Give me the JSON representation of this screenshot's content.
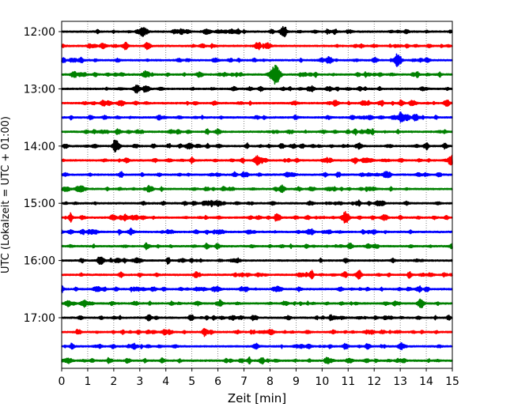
{
  "chart_data": {
    "type": "line",
    "title": "",
    "xlabel": "Zeit  [min]",
    "ylabel": "UTC (Lokalzeit = UTC + 01:00)",
    "xlim": [
      0,
      15
    ],
    "x_ticks": [
      "0",
      "1",
      "2",
      "3",
      "4",
      "5",
      "6",
      "7",
      "8",
      "9",
      "10",
      "11",
      "12",
      "13",
      "14",
      "15"
    ],
    "y_tick_labels": [
      "12:00",
      "13:00",
      "14:00",
      "15:00",
      "16:00",
      "17:00"
    ],
    "grid": "vertical dotted lines at each minute",
    "colors": [
      "#000000",
      "#ff0000",
      "#0000ff",
      "#008000"
    ],
    "traces": [
      {
        "start": "12:00",
        "color": "#000000",
        "bursts": [
          {
            "t": 8.5,
            "amp": 0.7
          },
          {
            "t": 3.1,
            "amp": 0.45
          }
        ]
      },
      {
        "start": "12:15",
        "color": "#ff0000",
        "bursts": [
          {
            "t": 3.3,
            "amp": 0.6
          }
        ]
      },
      {
        "start": "12:30",
        "color": "#0000ff",
        "bursts": [
          {
            "t": 12.9,
            "amp": 1.0
          },
          {
            "t": 10.3,
            "amp": 0.45
          }
        ]
      },
      {
        "start": "12:45",
        "color": "#008000",
        "bursts": [
          {
            "t": 8.2,
            "amp": 1.6
          }
        ]
      },
      {
        "start": "13:00",
        "color": "#000000",
        "bursts": [
          {
            "t": 2.9,
            "amp": 0.5
          }
        ]
      },
      {
        "start": "13:15",
        "color": "#ff0000",
        "bursts": [
          {
            "t": 14.8,
            "amp": 0.5
          },
          {
            "t": 11.6,
            "amp": 0.4
          }
        ]
      },
      {
        "start": "13:30",
        "color": "#0000ff",
        "bursts": [
          {
            "t": 13.1,
            "amp": 0.55
          }
        ]
      },
      {
        "start": "13:45",
        "color": "#008000",
        "bursts": [
          {
            "t": 6.0,
            "amp": 0.4
          }
        ]
      },
      {
        "start": "14:00",
        "color": "#000000",
        "bursts": [
          {
            "t": 2.1,
            "amp": 0.9
          }
        ]
      },
      {
        "start": "14:15",
        "color": "#ff0000",
        "bursts": [
          {
            "t": 15.0,
            "amp": 0.6
          },
          {
            "t": 7.5,
            "amp": 0.45
          }
        ]
      },
      {
        "start": "14:30",
        "color": "#0000ff",
        "bursts": [
          {
            "t": 12.5,
            "amp": 0.4
          }
        ]
      },
      {
        "start": "14:45",
        "color": "#008000",
        "bursts": [
          {
            "t": 0.6,
            "amp": 0.35
          }
        ]
      },
      {
        "start": "15:00",
        "color": "#000000",
        "bursts": [
          {
            "t": 6.0,
            "amp": 0.45
          },
          {
            "t": 12.3,
            "amp": 0.4
          }
        ]
      },
      {
        "start": "15:15",
        "color": "#ff0000",
        "bursts": [
          {
            "t": 10.9,
            "amp": 1.0
          },
          {
            "t": 8.3,
            "amp": 0.55
          }
        ]
      },
      {
        "start": "15:30",
        "color": "#0000ff",
        "bursts": [
          {
            "t": 7.2,
            "amp": 0.35
          }
        ]
      },
      {
        "start": "15:45",
        "color": "#008000",
        "bursts": [
          {
            "t": 11.1,
            "amp": 0.3
          }
        ]
      },
      {
        "start": "16:00",
        "color": "#000000",
        "bursts": [
          {
            "t": 2.2,
            "amp": 0.3
          }
        ]
      },
      {
        "start": "16:15",
        "color": "#ff0000",
        "bursts": [
          {
            "t": 11.4,
            "amp": 0.55
          }
        ]
      },
      {
        "start": "16:30",
        "color": "#0000ff",
        "bursts": [
          {
            "t": 1.3,
            "amp": 0.3
          }
        ]
      },
      {
        "start": "16:45",
        "color": "#008000",
        "bursts": [
          {
            "t": 6.1,
            "amp": 0.25
          }
        ]
      },
      {
        "start": "17:00",
        "color": "#000000",
        "bursts": [
          {
            "t": 7.4,
            "amp": 0.25
          }
        ]
      },
      {
        "start": "17:15",
        "color": "#ff0000",
        "bursts": [
          {
            "t": 5.5,
            "amp": 0.25
          }
        ]
      },
      {
        "start": "17:30",
        "color": "#0000ff",
        "bursts": [
          {
            "t": 13.0,
            "amp": 0.35
          },
          {
            "t": 9.2,
            "amp": 0.3
          }
        ]
      },
      {
        "start": "17:45",
        "color": "#008000",
        "bursts": [
          {
            "t": 6.9,
            "amp": 0.3
          }
        ]
      }
    ]
  }
}
